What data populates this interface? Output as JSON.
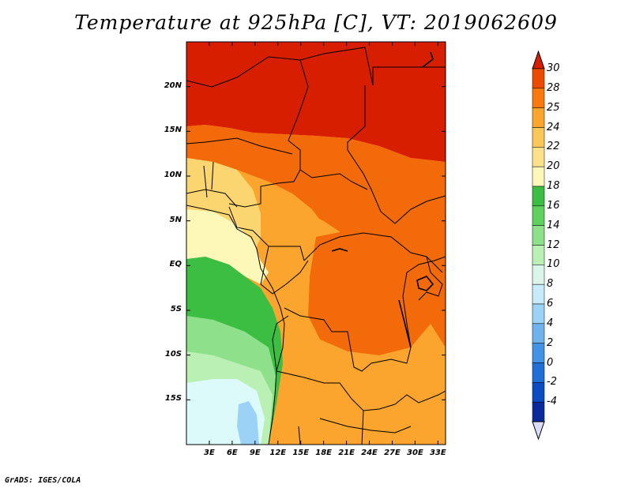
{
  "title": "Temperature at 925hPa [C], VT: 2019062609",
  "credit": "GrADS: IGES/COLA",
  "lat_labels": [
    "20N",
    "15N",
    "10N",
    "5N",
    "EQ",
    "5S",
    "10S",
    "15S"
  ],
  "lon_labels": [
    "3E",
    "6E",
    "9E",
    "12E",
    "15E",
    "18E",
    "21E",
    "24E",
    "27E",
    "30E",
    "33E"
  ],
  "colorbar": {
    "labels": [
      "30",
      "28",
      "25",
      "24",
      "22",
      "20",
      "18",
      "16",
      "14",
      "12",
      "10",
      "8",
      "6",
      "4",
      "2",
      "0",
      "-2",
      "-4"
    ],
    "colors": [
      "#d71e00",
      "#ec4a00",
      "#f87a0e",
      "#fba52e",
      "#fbc65a",
      "#fbe28a",
      "#fdf7b8",
      "#3bbe41",
      "#5fd15f",
      "#8ee08a",
      "#baf0b3",
      "#dbf6e8",
      "#c8ebfb",
      "#9bd2f5",
      "#6fb2ee",
      "#4392e4",
      "#1f6fd6",
      "#0b4cc2",
      "#0a2a99",
      "#08105e"
    ],
    "over_color": "#d71e00",
    "under_color": "#dcdcfa"
  },
  "map": {
    "extent": {
      "lon_min": 0,
      "lon_max": 34,
      "lat_min": -20,
      "lat_max": 25
    },
    "fields": {
      "north_band_color": "#d71e00",
      "orange_color": "#f26a0a",
      "light_orange": "#fba52e",
      "yellow": "#fbd56f",
      "pale_yellow": "#fdf7b8",
      "green": "#3bbe41",
      "light_green": "#8ee08a",
      "pale_green": "#baf0b3",
      "pale_blue": "#dcfafa",
      "blue_lake": "#9bd2f5"
    }
  }
}
